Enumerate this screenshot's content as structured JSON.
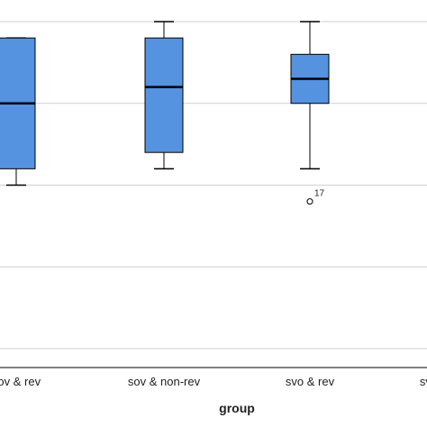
{
  "chart_data": {
    "type": "boxplot",
    "xlabel": "group",
    "categories": [
      "sov & rev",
      "sov & non-rev",
      "svo & rev",
      "svo & non-rev"
    ],
    "ylim": [
      0,
      4
    ],
    "gridlines": [
      0,
      1,
      2,
      3,
      4
    ],
    "grid": true,
    "box_color": "#5592e0",
    "boxes": [
      {
        "category": "sov & rev",
        "min": 2.0,
        "q1": 2.2,
        "median": 3.0,
        "q3": 3.8,
        "max": 3.8
      },
      {
        "category": "sov & non-rev",
        "min": 2.2,
        "q1": 2.4,
        "median": 3.2,
        "q3": 3.8,
        "max": 4.0
      },
      {
        "category": "svo & rev",
        "min": 2.2,
        "q1": 3.0,
        "median": 3.3,
        "q3": 3.6,
        "max": 4.0
      }
    ],
    "outliers": [
      {
        "category": "svo & rev",
        "value": 1.8,
        "label": "17"
      }
    ]
  }
}
